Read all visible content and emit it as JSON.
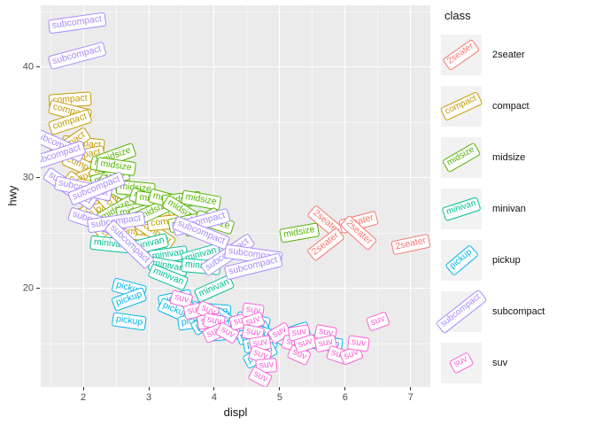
{
  "chart_data": {
    "type": "scatter",
    "mark": "rotated-text-label",
    "title": "",
    "xlabel": "displ",
    "ylabel": "hwy",
    "xlim": [
      1.35,
      7.3
    ],
    "ylim": [
      11.1,
      45.6
    ],
    "x_ticks": [
      2,
      3,
      4,
      5,
      6,
      7
    ],
    "y_ticks": [
      20,
      30,
      40
    ],
    "x_minor_ticks": [
      1.5,
      2.5,
      3.5,
      4.5,
      5.5,
      6.5
    ],
    "y_minor_ticks": [
      15,
      25,
      35,
      45
    ],
    "grid": "on",
    "panel_bg": "#EBEBEB",
    "grid_color": "#FFFFFF",
    "class_colors": {
      "2seater": "#F8766D",
      "compact": "#C49A00",
      "midsize": "#53B400",
      "minivan": "#00C094",
      "pickup": "#00B6EB",
      "subcompact": "#A58AFF",
      "suv": "#FB61D7"
    },
    "point_format": [
      "x",
      "y",
      "angle_deg",
      "class"
    ],
    "points": [
      [
        5.7,
        26,
        40,
        "2seater"
      ],
      [
        5.7,
        24,
        -38,
        "2seater"
      ],
      [
        6.2,
        26,
        -15,
        "2seater"
      ],
      [
        6.2,
        25,
        42,
        "2seater"
      ],
      [
        7.0,
        24,
        -12,
        "2seater"
      ],
      [
        1.8,
        37,
        -4,
        "compact"
      ],
      [
        1.8,
        36,
        14,
        "compact"
      ],
      [
        1.8,
        35,
        -18,
        "compact"
      ],
      [
        2.0,
        33,
        6,
        "compact"
      ],
      [
        2.0,
        32,
        -10,
        "compact"
      ],
      [
        2.0,
        31,
        24,
        "compact"
      ],
      [
        2.0,
        30,
        -22,
        "compact"
      ],
      [
        2.0,
        29,
        38,
        "compact"
      ],
      [
        1.8,
        33,
        -34,
        "compact"
      ],
      [
        2.2,
        29,
        10,
        "compact"
      ],
      [
        2.2,
        27,
        -16,
        "compact"
      ],
      [
        2.4,
        30,
        28,
        "compact"
      ],
      [
        2.4,
        29,
        -8,
        "compact"
      ],
      [
        2.5,
        28,
        18,
        "compact"
      ],
      [
        2.5,
        27,
        48,
        "compact"
      ],
      [
        2.5,
        26,
        -26,
        "compact"
      ],
      [
        2.8,
        26,
        -12,
        "compact"
      ],
      [
        2.8,
        25,
        8,
        "compact"
      ],
      [
        3.1,
        26,
        -20,
        "compact"
      ],
      [
        3.1,
        25,
        34,
        "compact"
      ],
      [
        3.3,
        26,
        -6,
        "compact"
      ],
      [
        2.2,
        26,
        54,
        "compact"
      ],
      [
        2.4,
        31,
        12,
        "midsize"
      ],
      [
        2.4,
        30,
        -15,
        "midsize"
      ],
      [
        2.5,
        32,
        -20,
        "midsize"
      ],
      [
        2.5,
        31,
        8,
        "midsize"
      ],
      [
        2.5,
        29,
        28,
        "midsize"
      ],
      [
        2.5,
        27,
        -30,
        "midsize"
      ],
      [
        2.8,
        29,
        5,
        "midsize"
      ],
      [
        2.8,
        27,
        -12,
        "midsize"
      ],
      [
        3.0,
        28,
        20,
        "midsize"
      ],
      [
        3.0,
        27,
        -18,
        "midsize"
      ],
      [
        3.1,
        28,
        8,
        "midsize"
      ],
      [
        3.1,
        27,
        -25,
        "midsize"
      ],
      [
        3.3,
        28,
        15,
        "midsize"
      ],
      [
        3.5,
        28,
        -6,
        "midsize"
      ],
      [
        3.5,
        27,
        32,
        "midsize"
      ],
      [
        3.6,
        26,
        -12,
        "midsize"
      ],
      [
        3.8,
        28,
        10,
        "midsize"
      ],
      [
        3.8,
        26,
        -28,
        "midsize"
      ],
      [
        4.0,
        26,
        18,
        "midsize"
      ],
      [
        5.3,
        25,
        -10,
        "midsize"
      ],
      [
        2.4,
        24,
        6,
        "minivan"
      ],
      [
        3.0,
        24,
        -14,
        "minivan"
      ],
      [
        3.3,
        23,
        -8,
        "minivan"
      ],
      [
        3.3,
        22,
        10,
        "minivan"
      ],
      [
        3.3,
        21,
        22,
        "minivan"
      ],
      [
        3.8,
        23,
        -16,
        "minivan"
      ],
      [
        3.8,
        22,
        5,
        "minivan"
      ],
      [
        4.0,
        20,
        -24,
        "minivan"
      ],
      [
        2.7,
        20,
        15,
        "pickup"
      ],
      [
        2.7,
        19,
        -20,
        "pickup"
      ],
      [
        2.7,
        17,
        8,
        "pickup"
      ],
      [
        3.4,
        19,
        -12,
        "pickup"
      ],
      [
        3.4,
        18,
        24,
        "pickup"
      ],
      [
        3.7,
        17,
        -8,
        "pickup"
      ],
      [
        3.9,
        18,
        10,
        "pickup"
      ],
      [
        3.9,
        17,
        -30,
        "pickup"
      ],
      [
        4.0,
        18,
        5,
        "pickup"
      ],
      [
        4.0,
        17,
        -15,
        "pickup"
      ],
      [
        4.2,
        17,
        34,
        "pickup"
      ],
      [
        4.2,
        16,
        -5,
        "pickup"
      ],
      [
        4.6,
        17,
        12,
        "pickup"
      ],
      [
        4.6,
        16,
        -22,
        "pickup"
      ],
      [
        4.7,
        16,
        18,
        "pickup"
      ],
      [
        4.7,
        15,
        -10,
        "pickup"
      ],
      [
        4.7,
        14,
        -28,
        "pickup"
      ],
      [
        5.2,
        16,
        -18,
        "pickup"
      ],
      [
        5.2,
        15,
        28,
        "pickup"
      ],
      [
        5.7,
        15,
        8,
        "pickup"
      ],
      [
        1.9,
        44,
        -8,
        "subcompact"
      ],
      [
        1.9,
        41,
        -15,
        "subcompact"
      ],
      [
        1.6,
        33,
        24,
        "subcompact"
      ],
      [
        1.6,
        32,
        -18,
        "subcompact"
      ],
      [
        1.8,
        29,
        34,
        "subcompact"
      ],
      [
        2.0,
        29,
        12,
        "subcompact"
      ],
      [
        2.2,
        29,
        -22,
        "subcompact"
      ],
      [
        2.2,
        26,
        18,
        "subcompact"
      ],
      [
        2.5,
        26,
        -8,
        "subcompact"
      ],
      [
        2.7,
        24,
        44,
        "subcompact"
      ],
      [
        3.8,
        26,
        -15,
        "subcompact"
      ],
      [
        3.8,
        25,
        22,
        "subcompact"
      ],
      [
        4.2,
        23,
        -34,
        "subcompact"
      ],
      [
        4.6,
        23,
        8,
        "subcompact"
      ],
      [
        4.6,
        22,
        -14,
        "subcompact"
      ],
      [
        3.5,
        19,
        15,
        "suv"
      ],
      [
        3.7,
        18,
        -12,
        "suv"
      ],
      [
        3.9,
        18,
        24,
        "suv"
      ],
      [
        3.9,
        17,
        -8,
        "suv"
      ],
      [
        4.0,
        17,
        10,
        "suv"
      ],
      [
        4.0,
        16,
        -24,
        "suv"
      ],
      [
        4.2,
        16,
        30,
        "suv"
      ],
      [
        4.4,
        17,
        -15,
        "suv"
      ],
      [
        4.6,
        18,
        8,
        "suv"
      ],
      [
        4.6,
        17,
        -20,
        "suv"
      ],
      [
        4.6,
        16,
        12,
        "suv"
      ],
      [
        4.7,
        15,
        -10,
        "suv"
      ],
      [
        4.7,
        14,
        20,
        "suv"
      ],
      [
        5.0,
        16,
        -30,
        "suv"
      ],
      [
        5.2,
        15,
        15,
        "suv"
      ],
      [
        5.3,
        16,
        -8,
        "suv"
      ],
      [
        5.3,
        14,
        24,
        "suv"
      ],
      [
        5.4,
        15,
        -18,
        "suv"
      ],
      [
        5.7,
        16,
        10,
        "suv"
      ],
      [
        5.7,
        15,
        -12,
        "suv"
      ],
      [
        5.9,
        14,
        18,
        "suv"
      ],
      [
        6.1,
        14,
        -22,
        "suv"
      ],
      [
        6.2,
        15,
        8,
        "suv"
      ],
      [
        6.5,
        17,
        -20,
        "suv"
      ],
      [
        4.8,
        13,
        -5,
        "suv"
      ],
      [
        4.7,
        12,
        28,
        "suv"
      ]
    ],
    "legend": {
      "title": "class",
      "position": "right",
      "entries": [
        {
          "label": "2seater",
          "color": "#F8766D",
          "key_angle": -35
        },
        {
          "label": "compact",
          "color": "#C49A00",
          "key_angle": -25
        },
        {
          "label": "midsize",
          "color": "#53B400",
          "key_angle": -30
        },
        {
          "label": "minivan",
          "color": "#00C094",
          "key_angle": -18
        },
        {
          "label": "pickup",
          "color": "#00B6EB",
          "key_angle": -40
        },
        {
          "label": "subcompact",
          "color": "#A58AFF",
          "key_angle": -38
        },
        {
          "label": "suv",
          "color": "#FB61D7",
          "key_angle": -28
        }
      ]
    }
  }
}
